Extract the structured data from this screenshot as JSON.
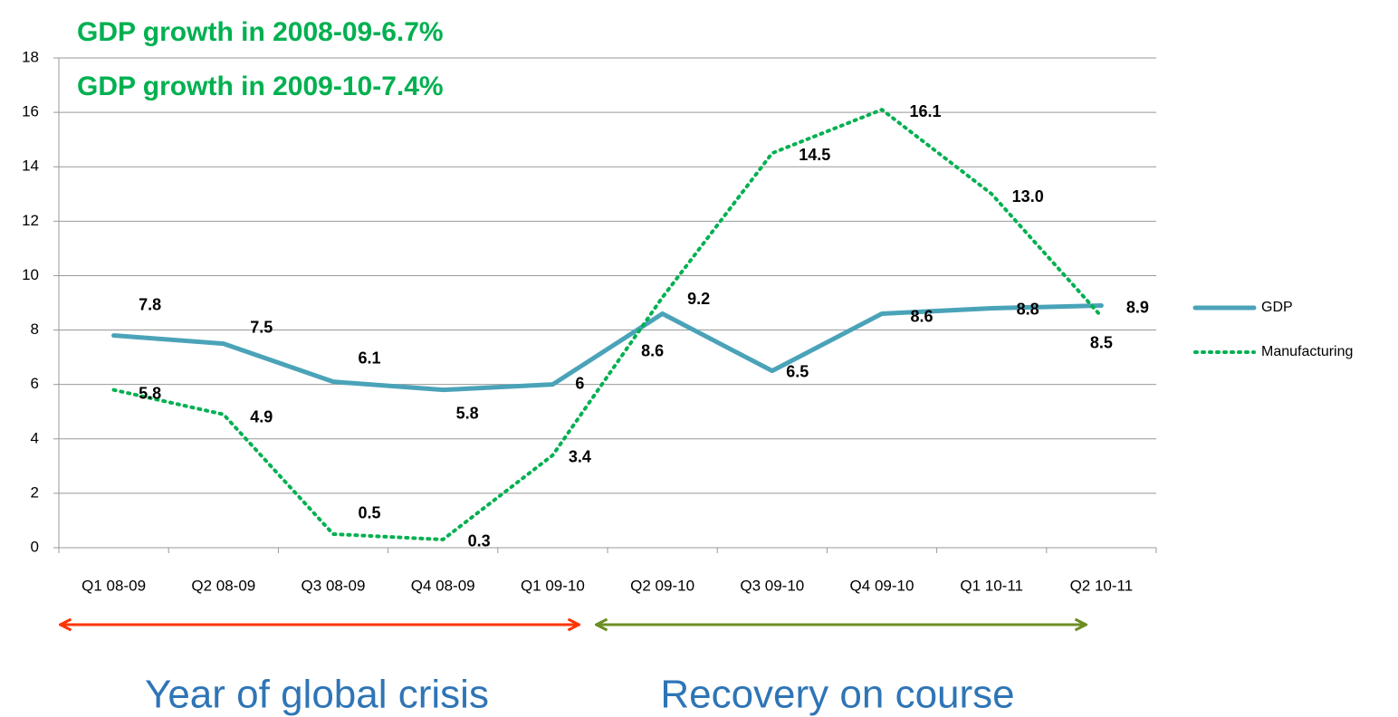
{
  "chart_data": {
    "type": "line",
    "annotations": [
      "GDP growth in 2008-09-6.7%",
      "GDP growth in 2009-10-7.4%",
      "Year of global crisis",
      "Recovery on course"
    ],
    "categories": [
      "Q1 08-09",
      "Q2 08-09",
      "Q3 08-09",
      "Q4 08-09",
      "Q1 09-10",
      "Q2 09-10",
      "Q3 09-10",
      "Q4 09-10",
      "Q1 10-11",
      "Q2 10-11"
    ],
    "series": [
      {
        "name": "GDP",
        "color": "#4aa3b8",
        "values": [
          7.8,
          7.5,
          6.1,
          5.8,
          6,
          8.6,
          6.5,
          8.6,
          8.8,
          8.9
        ]
      },
      {
        "name": "Manufacturing",
        "color": "#00b050",
        "values": [
          5.8,
          4.9,
          0.5,
          0.3,
          3.4,
          9.2,
          14.5,
          16.1,
          13.0,
          8.5
        ],
        "value_labels": [
          "5.8",
          "4.9",
          "0.5",
          "0.3",
          "3.4",
          "9.2",
          "14.5",
          "16.1",
          "13.0",
          "8.5"
        ]
      }
    ],
    "ylim": [
      0,
      18
    ],
    "yticks": [
      0,
      2,
      4,
      6,
      8,
      10,
      12,
      14,
      16,
      18
    ],
    "grid": true,
    "legend": "right"
  }
}
